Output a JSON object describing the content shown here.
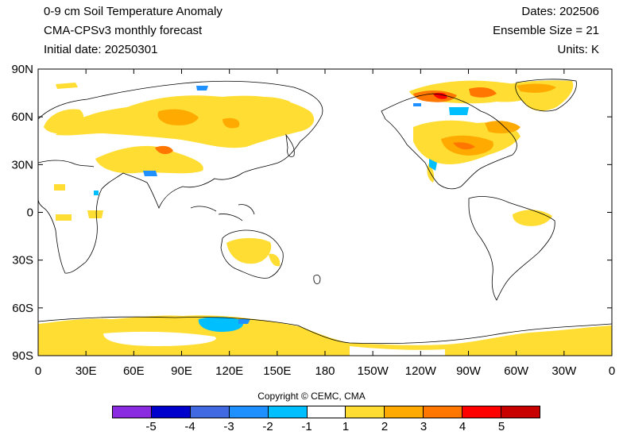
{
  "header": {
    "title": "0-9 cm Soil Temperature Anomaly",
    "model": "CMA-CPSv3 monthly forecast",
    "initial_date": "Initial date: 20250301",
    "dates": "Dates: 202506",
    "ensemble": "Ensemble Size = 21",
    "units": "Units: K"
  },
  "map": {
    "lat_labels": [
      "90N",
      "60N",
      "30N",
      "0",
      "30S",
      "60S",
      "90S"
    ],
    "lon_labels": [
      "0",
      "30E",
      "60E",
      "90E",
      "120E",
      "150E",
      "180",
      "150W",
      "120W",
      "90W",
      "60W",
      "30W",
      "0"
    ],
    "projection": "cylindrical equidistant, centered on 180",
    "regions": [
      {
        "name": "Europe / Siberia warm",
        "class": "1 to 2"
      },
      {
        "name": "Central Asia warm",
        "class": "2 to 3"
      },
      {
        "name": "North America warm",
        "class": "2 to 3"
      },
      {
        "name": "Hudson Bay / Arctic Canada warm",
        "class": "3 to 5"
      },
      {
        "name": "Greenland warm",
        "class": "1 to 3"
      },
      {
        "name": "Australia warm",
        "class": "1 to 2"
      },
      {
        "name": "Antarctica warm",
        "class": "1 to 2"
      },
      {
        "name": "East Antarctica cool",
        "class": "-2 to -1"
      }
    ]
  },
  "copyright": "Copyright © CEMC, CMA",
  "colorbar": {
    "colors": [
      "#8a2be2",
      "#0000cd",
      "#4169e1",
      "#1e90ff",
      "#00bfff",
      "#ffffff",
      "#ffdd33",
      "#ffaa00",
      "#ff7700",
      "#ff0000",
      "#c80000"
    ],
    "labels": [
      "-5",
      "-4",
      "-3",
      "-2",
      "-1",
      "1",
      "2",
      "3",
      "4",
      "5"
    ]
  }
}
